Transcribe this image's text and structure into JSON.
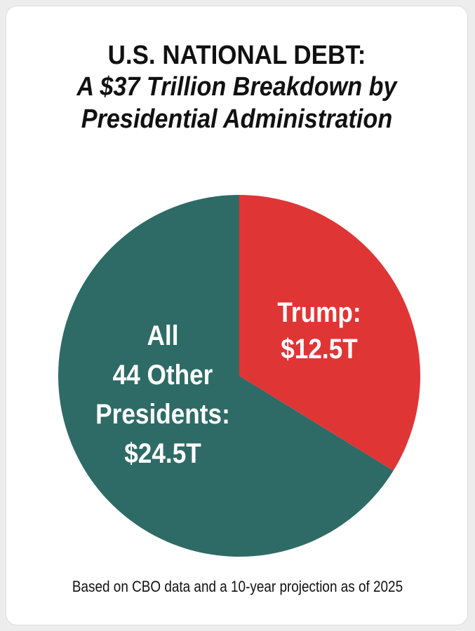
{
  "title": {
    "line1": "U.S. NATIONAL DEBT:",
    "line2": "A $37 Trillion Breakdown by",
    "line3": "Presidential Administration"
  },
  "footnote": "Based on CBO data and a 10-year projection as of 2025",
  "chart_data": {
    "type": "pie",
    "slices": [
      {
        "label_lines": [
          "Trump:",
          "$12.5T"
        ],
        "value": 12.5,
        "color": "#e03535"
      },
      {
        "label_lines": [
          "All",
          "44 Other",
          "Presidents:",
          "$24.5T"
        ],
        "value": 24.5,
        "color": "#2e6b66"
      }
    ],
    "start_angle": "12 o'clock",
    "direction": "clockwise"
  }
}
